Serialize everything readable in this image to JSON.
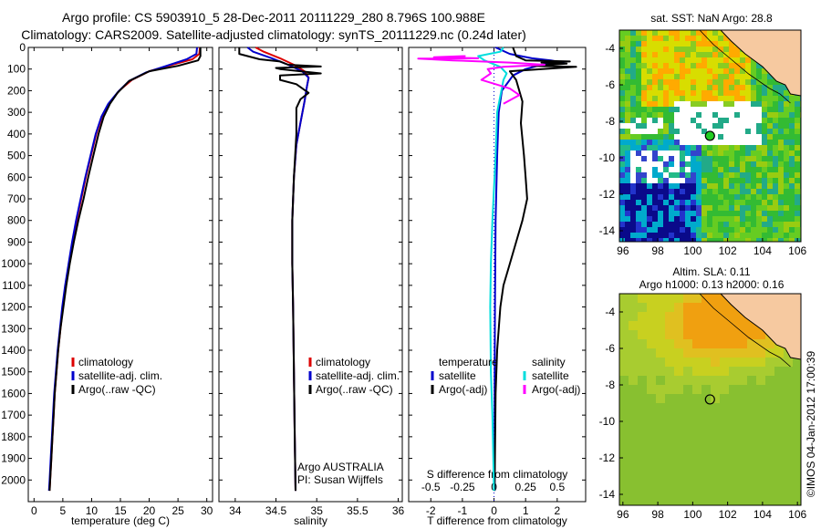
{
  "header": {
    "line1": "Argo profile: CS 5903910_5 28-Dec-2011 20111229_280 8.796S 100.988E",
    "line2": "Climatology: CARS2009. Satellite-adjusted climatology: synTS_20111229.nc (0.24d later)"
  },
  "colors": {
    "climatology": "#dd0000",
    "satellite": "#0000cc",
    "argo": "#000000",
    "sal_satellite": "#00dddd",
    "sal_argo": "#ff00ff",
    "land": "#f6c9a0",
    "missing": "#ffffff"
  },
  "chart_data": [
    {
      "id": "temperature",
      "type": "line",
      "xlabel": "temperature (deg C)",
      "xlim": [
        -1,
        31
      ],
      "xticks": [
        0,
        5,
        10,
        15,
        20,
        25,
        30
      ],
      "ylim": [
        2100,
        0
      ],
      "yticks": [
        0,
        100,
        200,
        300,
        400,
        500,
        600,
        700,
        800,
        900,
        1000,
        1100,
        1200,
        1300,
        1400,
        1500,
        1600,
        1700,
        1800,
        1900,
        2000
      ],
      "legend": [
        "climatology",
        "satellite-adj. clim.",
        "Argo(..raw -QC)"
      ],
      "series": [
        {
          "name": "climatology",
          "color": "#dd0000",
          "points": [
            [
              28.8,
              0
            ],
            [
              28.7,
              30
            ],
            [
              27.5,
              55
            ],
            [
              24,
              80
            ],
            [
              20,
              110
            ],
            [
              17,
              150
            ],
            [
              14.8,
              200
            ],
            [
              13,
              260
            ],
            [
              11.8,
              320
            ],
            [
              10.8,
              400
            ],
            [
              9.9,
              500
            ],
            [
              9.0,
              600
            ],
            [
              8.2,
              700
            ],
            [
              7.4,
              800
            ],
            [
              6.7,
              900
            ],
            [
              6.1,
              1000
            ],
            [
              5.5,
              1100
            ],
            [
              5.0,
              1200
            ],
            [
              4.6,
              1300
            ],
            [
              4.2,
              1400
            ],
            [
              3.9,
              1500
            ],
            [
              3.6,
              1600
            ],
            [
              3.4,
              1700
            ],
            [
              3.2,
              1800
            ],
            [
              3.0,
              1900
            ],
            [
              2.8,
              2000
            ],
            [
              2.7,
              2050
            ]
          ]
        },
        {
          "name": "satellite-adj. clim.",
          "color": "#0000cc",
          "points": [
            [
              28.3,
              0
            ],
            [
              28.2,
              30
            ],
            [
              26.5,
              55
            ],
            [
              23,
              85
            ],
            [
              19.5,
              115
            ],
            [
              16.5,
              155
            ],
            [
              14.6,
              205
            ],
            [
              12.9,
              260
            ],
            [
              11.7,
              320
            ],
            [
              10.7,
              400
            ],
            [
              9.8,
              500
            ],
            [
              8.9,
              600
            ],
            [
              8.1,
              700
            ],
            [
              7.3,
              800
            ],
            [
              6.6,
              900
            ],
            [
              6.0,
              1000
            ],
            [
              5.4,
              1100
            ],
            [
              4.9,
              1200
            ],
            [
              4.5,
              1300
            ],
            [
              4.1,
              1400
            ],
            [
              3.8,
              1500
            ],
            [
              3.5,
              1600
            ],
            [
              3.3,
              1700
            ],
            [
              3.1,
              1800
            ],
            [
              2.9,
              1900
            ],
            [
              2.7,
              2000
            ],
            [
              2.6,
              2050
            ]
          ]
        },
        {
          "name": "Argo(..raw -QC)",
          "color": "#000000",
          "points": [
            [
              28.9,
              0
            ],
            [
              28.9,
              40
            ],
            [
              28.5,
              60
            ],
            [
              25,
              85
            ],
            [
              20,
              110
            ],
            [
              16.5,
              155
            ],
            [
              14.5,
              210
            ],
            [
              13.2,
              260
            ],
            [
              12.1,
              320
            ],
            [
              11.2,
              400
            ],
            [
              10.3,
              500
            ],
            [
              9.4,
              600
            ],
            [
              8.6,
              700
            ],
            [
              7.7,
              800
            ],
            [
              6.9,
              900
            ],
            [
              6.2,
              1000
            ],
            [
              5.6,
              1100
            ],
            [
              5.1,
              1200
            ],
            [
              4.6,
              1300
            ],
            [
              4.2,
              1400
            ],
            [
              3.9,
              1500
            ],
            [
              3.6,
              1600
            ],
            [
              3.4,
              1700
            ],
            [
              3.2,
              1800
            ],
            [
              3.0,
              1900
            ],
            [
              2.8,
              2000
            ],
            [
              2.7,
              2050
            ]
          ]
        }
      ]
    },
    {
      "id": "salinity",
      "type": "line",
      "xlabel": "salinity",
      "xlim": [
        33.8,
        36.05
      ],
      "xticks": [
        34,
        34.5,
        35,
        35.5,
        36
      ],
      "xtick_labels": [
        "34",
        "34.5",
        "35",
        "35.5",
        "36"
      ],
      "ylim": [
        2100,
        0
      ],
      "legend": [
        "climatology",
        "satellite-adj. clim.",
        "Argo(..raw -QC)"
      ],
      "annotation": [
        "Argo AUSTRALIA",
        "PI: Susan Wijffels"
      ],
      "series": [
        {
          "name": "climatology",
          "color": "#dd0000",
          "points": [
            [
              34.25,
              0
            ],
            [
              34.35,
              20
            ],
            [
              34.55,
              50
            ],
            [
              34.72,
              80
            ],
            [
              34.85,
              110
            ],
            [
              34.9,
              140
            ],
            [
              34.88,
              180
            ],
            [
              34.85,
              250
            ],
            [
              34.8,
              350
            ],
            [
              34.75,
              450
            ],
            [
              34.72,
              600
            ],
            [
              34.7,
              800
            ],
            [
              34.7,
              1000
            ],
            [
              34.71,
              1200
            ],
            [
              34.72,
              1500
            ],
            [
              34.73,
              1800
            ],
            [
              34.74,
              2050
            ]
          ]
        },
        {
          "name": "satellite-adj. clim.",
          "color": "#0000cc",
          "points": [
            [
              34.15,
              0
            ],
            [
              34.22,
              20
            ],
            [
              34.45,
              50
            ],
            [
              34.65,
              80
            ],
            [
              34.82,
              110
            ],
            [
              34.9,
              140
            ],
            [
              34.88,
              180
            ],
            [
              34.85,
              250
            ],
            [
              34.8,
              350
            ],
            [
              34.75,
              450
            ],
            [
              34.72,
              600
            ],
            [
              34.7,
              800
            ],
            [
              34.7,
              1000
            ],
            [
              34.71,
              1200
            ],
            [
              34.72,
              1500
            ],
            [
              34.73,
              1800
            ],
            [
              34.74,
              2050
            ]
          ]
        },
        {
          "name": "Argo(..raw -QC)",
          "color": "#000000",
          "points": [
            [
              34.05,
              0
            ],
            [
              34.05,
              30
            ],
            [
              34.3,
              55
            ],
            [
              34.55,
              65
            ],
            [
              34.65,
              80
            ],
            [
              35.05,
              88
            ],
            [
              34.5,
              95
            ],
            [
              34.55,
              100
            ],
            [
              35.05,
              120
            ],
            [
              34.55,
              130
            ],
            [
              34.55,
              150
            ],
            [
              34.75,
              170
            ],
            [
              34.9,
              210
            ],
            [
              34.8,
              240
            ],
            [
              34.75,
              280
            ],
            [
              34.75,
              400
            ],
            [
              34.72,
              600
            ],
            [
              34.7,
              800
            ],
            [
              34.7,
              1000
            ],
            [
              34.71,
              1200
            ],
            [
              34.72,
              1500
            ],
            [
              34.73,
              1800
            ],
            [
              34.74,
              2050
            ]
          ]
        }
      ]
    },
    {
      "id": "difference",
      "type": "line",
      "xlabel": "T difference from climatology",
      "top_axis_title": "S difference from climatology",
      "xlim": [
        -2.7,
        2.9
      ],
      "xticks": [
        -2,
        -1,
        0,
        1,
        2
      ],
      "top_ticks": [
        -2,
        -1,
        0,
        1,
        2
      ],
      "top_tick_labels": [
        "-0.5",
        "-0.25",
        "0",
        "0.25",
        "0.5"
      ],
      "ylim": [
        2100,
        0
      ],
      "legend_titles": [
        "temperature",
        "salinity"
      ],
      "legend": [
        [
          "satellite",
          "Argo(-adj)"
        ],
        [
          "satellite",
          "Argo(-adj)"
        ]
      ],
      "series": [
        {
          "name": "temperature satellite",
          "color": "#0000cc",
          "points": [
            [
              0.05,
              0
            ],
            [
              0.5,
              30
            ],
            [
              1.2,
              50
            ],
            [
              1.8,
              60
            ],
            [
              2.2,
              70
            ],
            [
              1.5,
              80
            ],
            [
              1.0,
              100
            ],
            [
              0.6,
              130
            ],
            [
              0.25,
              200
            ],
            [
              0.15,
              300
            ],
            [
              0.1,
              500
            ],
            [
              0.05,
              800
            ],
            [
              0.03,
              1200
            ],
            [
              0.02,
              1600
            ],
            [
              0.02,
              2050
            ]
          ]
        },
        {
          "name": "temperature Argo(-adj)",
          "color": "#000000",
          "points": [
            [
              0.6,
              0
            ],
            [
              0.7,
              40
            ],
            [
              1.0,
              60
            ],
            [
              2.4,
              65
            ],
            [
              1.5,
              70
            ],
            [
              2.3,
              75
            ],
            [
              1.2,
              85
            ],
            [
              2.6,
              90
            ],
            [
              0.5,
              110
            ],
            [
              0.7,
              150
            ],
            [
              0.9,
              250
            ],
            [
              0.85,
              350
            ],
            [
              0.95,
              500
            ],
            [
              1.0,
              600
            ],
            [
              1.05,
              700
            ],
            [
              0.9,
              800
            ],
            [
              0.7,
              900
            ],
            [
              0.5,
              1000
            ],
            [
              0.3,
              1100
            ],
            [
              0.2,
              1200
            ],
            [
              0.1,
              1400
            ],
            [
              0.05,
              1600
            ],
            [
              0.02,
              2050
            ]
          ]
        },
        {
          "name": "salinity satellite",
          "color": "#00dddd",
          "points": [
            [
              0.3,
              0
            ],
            [
              0.2,
              20
            ],
            [
              -0.5,
              40
            ],
            [
              -0.3,
              60
            ],
            [
              0.2,
              90
            ],
            [
              0.4,
              120
            ],
            [
              0.3,
              150
            ],
            [
              0.1,
              300
            ],
            [
              0.05,
              500
            ],
            [
              -0.05,
              800
            ],
            [
              -0.1,
              1000
            ],
            [
              -0.12,
              1200
            ],
            [
              -0.1,
              1500
            ],
            [
              -0.05,
              1700
            ],
            [
              0.0,
              2050
            ]
          ]
        },
        {
          "name": "salinity Argo(-adj)",
          "color": "#ff00ff",
          "points": [
            [
              -0.9,
              40
            ],
            [
              -1.9,
              45
            ],
            [
              -0.5,
              50
            ],
            [
              -2.4,
              52
            ],
            [
              -1.3,
              60
            ],
            [
              0.5,
              70
            ],
            [
              1.6,
              80
            ],
            [
              0.3,
              90
            ],
            [
              -0.2,
              100
            ],
            [
              -0.1,
              120
            ],
            [
              -0.4,
              150
            ],
            [
              0.5,
              190
            ],
            [
              0.8,
              220
            ],
            [
              0.3,
              260
            ]
          ]
        }
      ]
    }
  ],
  "maps": {
    "sst": {
      "title": "sat. SST: NaN Argo: 28.8",
      "xticks": [
        "96",
        "98",
        "100",
        "102",
        "104",
        "106"
      ],
      "yticks": [
        "-4",
        "-6",
        "-8",
        "-10",
        "-12",
        "-14"
      ]
    },
    "sla": {
      "title_line1": "Altim. SLA: 0.11",
      "title_line2": "Argo h1000: 0.13 h2000: 0.16",
      "xticks": [
        "96",
        "98",
        "100",
        "102",
        "104",
        "106"
      ],
      "yticks": [
        "-4",
        "-6",
        "-8",
        "-10",
        "-12",
        "-14"
      ]
    },
    "float_position": {
      "lon": 100.988,
      "lat": -8.796
    }
  },
  "credit": "©IMOS 04-Jan-2012 17:00:39"
}
